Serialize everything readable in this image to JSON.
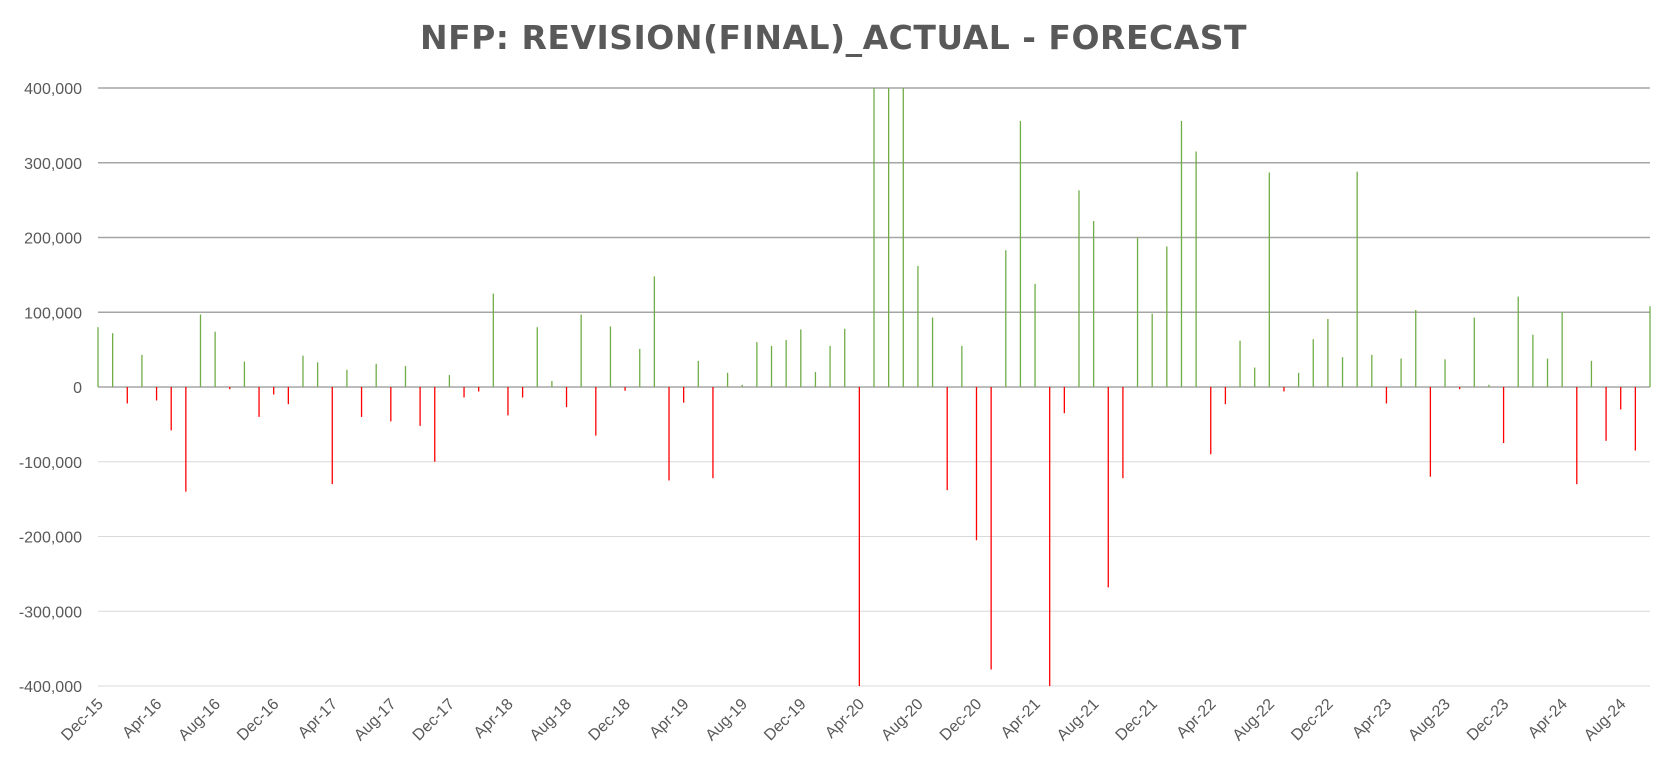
{
  "chart_data": {
    "type": "bar",
    "title": "NFP: REVISION(FINAL)_ACTUAL - FORECAST",
    "xlabel": "",
    "ylabel": "",
    "ylim": [
      -400000,
      400000
    ],
    "y_ticks": [
      400000,
      300000,
      200000,
      100000,
      0,
      -100000,
      -200000,
      -300000,
      -400000
    ],
    "y_tick_labels": [
      "400,000",
      "300,000",
      "200,000",
      "100,000",
      "0",
      "-100,000",
      "-200,000",
      "-300,000",
      "-400,000"
    ],
    "x_tick_labels": [
      "Dec-15",
      "Apr-16",
      "Aug-16",
      "Dec-16",
      "Apr-17",
      "Aug-17",
      "Dec-17",
      "Apr-18",
      "Aug-18",
      "Dec-18",
      "Apr-19",
      "Aug-19",
      "Dec-19",
      "Apr-20",
      "Aug-20",
      "Dec-20",
      "Apr-21",
      "Aug-21",
      "Dec-21",
      "Apr-22",
      "Aug-22",
      "Dec-22",
      "Apr-23",
      "Aug-23",
      "Dec-23",
      "Apr-24",
      "Aug-24"
    ],
    "x_tick_step_months": 4,
    "start_month": "Dec-15",
    "colors": {
      "positive": "#70ad47",
      "negative": "#ff0000",
      "grid_major": "#a6a6a6",
      "grid_minor": "#d9d9d9"
    },
    "values": [
      80000,
      72000,
      -22000,
      43000,
      -18000,
      -58000,
      -140000,
      97000,
      74000,
      -3000,
      34000,
      -40000,
      -10000,
      -23000,
      42000,
      33000,
      -130000,
      23000,
      -40000,
      31000,
      -46000,
      28000,
      -52000,
      -100000,
      16000,
      -14000,
      -6000,
      125000,
      -38000,
      -14000,
      80000,
      8000,
      -27000,
      97000,
      -65000,
      81000,
      -5000,
      51000,
      148000,
      -125000,
      -21000,
      35000,
      -122000,
      19000,
      3000,
      60000,
      55000,
      63000,
      77000,
      20000,
      55000,
      78000,
      -400000,
      400000,
      400000,
      400000,
      162000,
      93000,
      -138000,
      55000,
      -205000,
      -378000,
      183000,
      356000,
      138000,
      -400000,
      -35000,
      263000,
      222000,
      -268000,
      -122000,
      200000,
      98000,
      188000,
      356000,
      315000,
      -90000,
      -23000,
      62000,
      26000,
      287000,
      -6000,
      19000,
      64000,
      91000,
      40000,
      288000,
      43000,
      -22000,
      38000,
      103000,
      -120000,
      37000,
      -3000,
      93000,
      3000,
      -75000,
      121000,
      70000,
      38000,
      100000,
      -130000,
      35000,
      -72000,
      -30000,
      -85000,
      108000
    ]
  }
}
